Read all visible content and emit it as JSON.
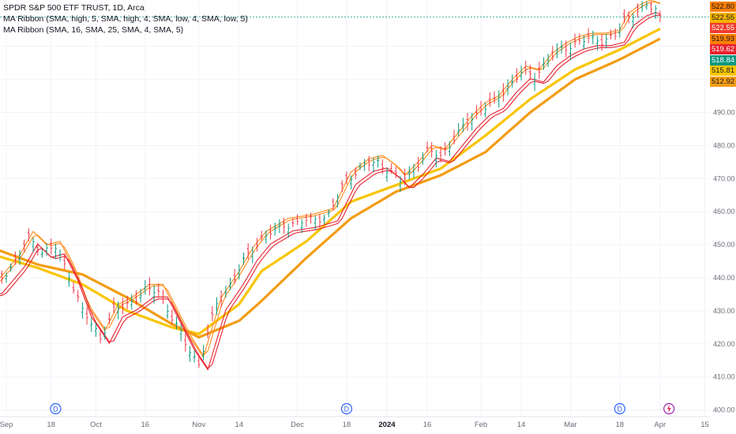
{
  "legend": {
    "title": "SPDR S&P 500 ETF TRUST, 1D, Arca",
    "line1": "MA Ribbon (SMA, high, 5, SMA, high, 4, SMA, low, 4, SMA, low, 5)",
    "line2": "MA Ribbon (SMA, 16, SMA, 25, SMA, 4, SMA, 5)"
  },
  "price_tags": [
    {
      "label": "522.80",
      "color": "#ff7f00"
    },
    {
      "label": "522.55",
      "color": "#f4b400"
    },
    {
      "label": "522.55",
      "color": "#ef3b2c"
    },
    {
      "label": "519.93",
      "color": "#ff7f00"
    },
    {
      "label": "519.62",
      "color": "#e8212e"
    },
    {
      "label": "518.84",
      "color": "#089981"
    },
    {
      "label": "515.81",
      "color": "#f9c500"
    },
    {
      "label": "512.92",
      "color": "#f39c12"
    }
  ],
  "events": {
    "dividend_label": "D",
    "dividend_icon": "dividend-icon",
    "earnings_icon": "lightning-icon"
  },
  "colors": {
    "up": "#089981",
    "down": "#f23645",
    "ma_fast_red": "#e8212e",
    "ma_fast_orange": "#ff8c1a",
    "ma_slow_yellow": "#f9c500",
    "ma_slow_orange": "#f39c12",
    "grid": "#f0f3fa"
  },
  "chart_data": {
    "type": "line",
    "title": "SPDR S&P 500 ETF TRUST, 1D, Arca",
    "xlabel": "",
    "ylabel": "",
    "ylim": [
      398,
      524
    ],
    "yticks": [
      400,
      410,
      420,
      430,
      440,
      450,
      460,
      470,
      480,
      490,
      500,
      510
    ],
    "xticks": [
      {
        "label": "Sep",
        "day": 3
      },
      {
        "label": "18",
        "day": 13
      },
      {
        "label": "Oct",
        "day": 23
      },
      {
        "label": "16",
        "day": 34
      },
      {
        "label": "Nov",
        "day": 46
      },
      {
        "label": "14",
        "day": 55
      },
      {
        "label": "Dec",
        "day": 68
      },
      {
        "label": "18",
        "day": 79
      },
      {
        "label": "2024",
        "day": 88
      },
      {
        "label": "16",
        "day": 97
      },
      {
        "label": "Feb",
        "day": 109
      },
      {
        "label": "14",
        "day": 118
      },
      {
        "label": "Mar",
        "day": 129
      },
      {
        "label": "18",
        "day": 140
      },
      {
        "label": "Apr",
        "day": 149
      },
      {
        "label": "15",
        "day": 159
      }
    ],
    "dividend_days": [
      14,
      79,
      140
    ],
    "earnings_day": 151,
    "last_price": 518.84,
    "price_anchors": [
      [
        0,
        437
      ],
      [
        5,
        445
      ],
      [
        8,
        452
      ],
      [
        11,
        448
      ],
      [
        14,
        449
      ],
      [
        17,
        441
      ],
      [
        20,
        430
      ],
      [
        24,
        422
      ],
      [
        27,
        430
      ],
      [
        30,
        432
      ],
      [
        34,
        436
      ],
      [
        37,
        436
      ],
      [
        40,
        428
      ],
      [
        43,
        420
      ],
      [
        46,
        414
      ],
      [
        50,
        432
      ],
      [
        54,
        440
      ],
      [
        57,
        447
      ],
      [
        60,
        452
      ],
      [
        65,
        456
      ],
      [
        70,
        457
      ],
      [
        75,
        459
      ],
      [
        79,
        470
      ],
      [
        83,
        474
      ],
      [
        86,
        475
      ],
      [
        89,
        472
      ],
      [
        91,
        469
      ],
      [
        94,
        473
      ],
      [
        97,
        478
      ],
      [
        100,
        477
      ],
      [
        103,
        482
      ],
      [
        106,
        487
      ],
      [
        109,
        491
      ],
      [
        112,
        493
      ],
      [
        115,
        498
      ],
      [
        118,
        502
      ],
      [
        121,
        501
      ],
      [
        124,
        506
      ],
      [
        127,
        509
      ],
      [
        130,
        511
      ],
      [
        133,
        512
      ],
      [
        136,
        512
      ],
      [
        139,
        513
      ],
      [
        141,
        518
      ],
      [
        144,
        521
      ],
      [
        146,
        522
      ],
      [
        148,
        521
      ],
      [
        149,
        519
      ]
    ],
    "series": [
      {
        "name": "MA Ribbon (SMA, high, 5)",
        "role": "fast",
        "offset": 2.0
      },
      {
        "name": "MA Ribbon (SMA, high, 4)",
        "role": "fast",
        "offset": 1.6
      },
      {
        "name": "MA Ribbon (SMA, low, 4)",
        "role": "fast",
        "offset": -1.8
      },
      {
        "name": "MA Ribbon (SMA, low, 5)",
        "role": "fast",
        "offset": -2.4
      },
      {
        "name": "MA Ribbon (SMA, 16)",
        "role": "slow",
        "anchors": [
          [
            0,
            447
          ],
          [
            10,
            443
          ],
          [
            20,
            438
          ],
          [
            30,
            430
          ],
          [
            40,
            425
          ],
          [
            46,
            423
          ],
          [
            55,
            432
          ],
          [
            60,
            442
          ],
          [
            70,
            451
          ],
          [
            80,
            463
          ],
          [
            90,
            468
          ],
          [
            100,
            473
          ],
          [
            110,
            483
          ],
          [
            120,
            494
          ],
          [
            130,
            503
          ],
          [
            140,
            509
          ],
          [
            150,
            516
          ]
        ]
      },
      {
        "name": "MA Ribbon (SMA, 25)",
        "role": "slow",
        "anchors": [
          [
            0,
            449
          ],
          [
            10,
            444
          ],
          [
            20,
            441
          ],
          [
            30,
            434
          ],
          [
            40,
            426
          ],
          [
            46,
            422
          ],
          [
            55,
            427
          ],
          [
            60,
            433
          ],
          [
            70,
            446
          ],
          [
            80,
            458
          ],
          [
            90,
            466
          ],
          [
            100,
            471
          ],
          [
            110,
            478
          ],
          [
            120,
            490
          ],
          [
            130,
            500
          ],
          [
            140,
            506
          ],
          [
            150,
            513
          ]
        ]
      }
    ]
  }
}
